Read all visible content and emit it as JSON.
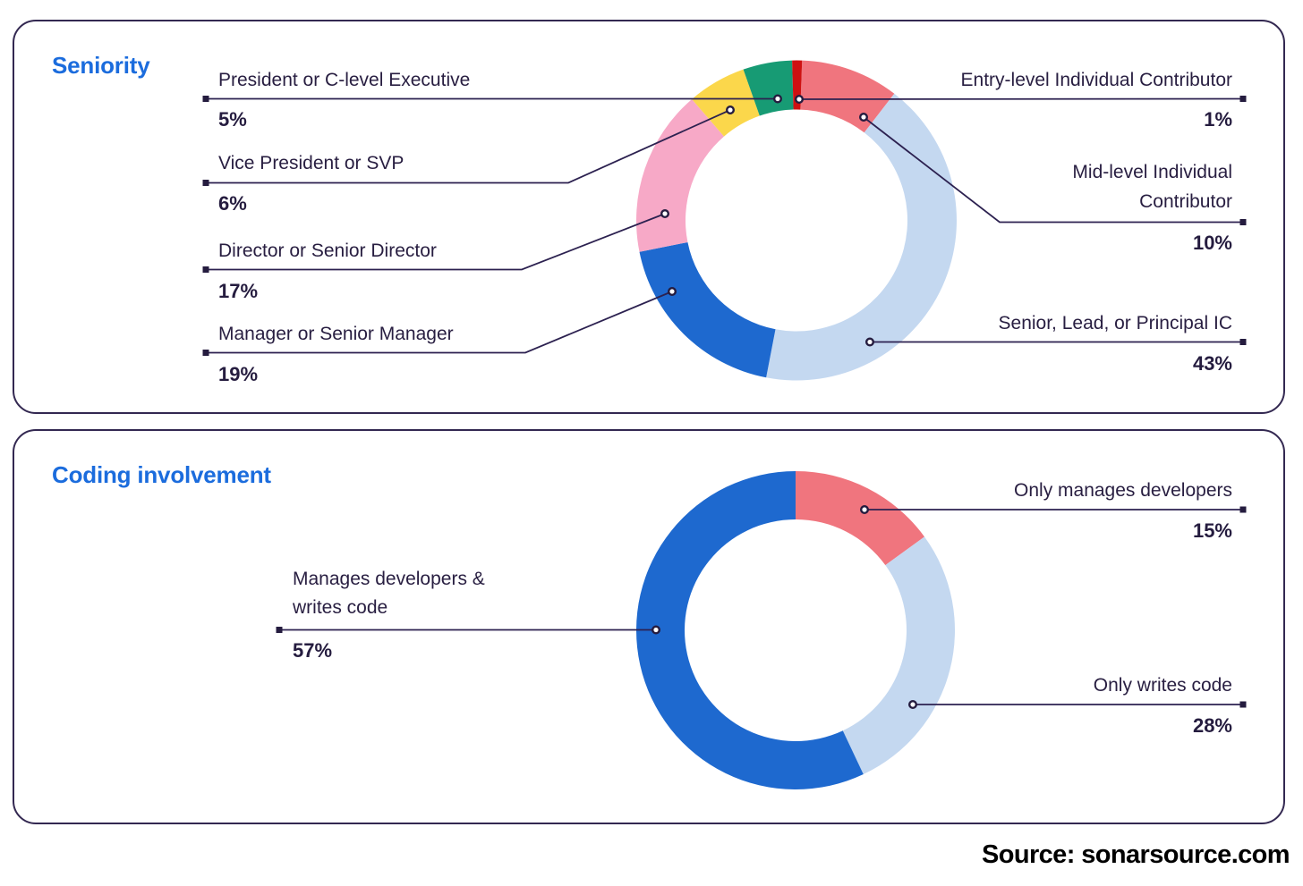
{
  "source": {
    "text": "Source: sonarsource.com"
  },
  "palette": {
    "title_blue": "#1B6CDD",
    "line_dark": "#2C2150",
    "text_dark": "#281E41",
    "panel_border": "#332851"
  },
  "chart_data": [
    {
      "type": "pie",
      "variant": "donut",
      "title": "Seniority",
      "order": "clockwise-from-top",
      "legend_position": "callouts",
      "segments": [
        {
          "label": "Mid-level Individual Contributor",
          "value": 10,
          "display": "10%",
          "color": "#F0757E"
        },
        {
          "label": "Senior, Lead, or Principal IC",
          "value": 43,
          "display": "43%",
          "color": "#C4D8F0"
        },
        {
          "label": "Manager or Senior Manager",
          "value": 19,
          "display": "19%",
          "color": "#1E69CF"
        },
        {
          "label": "Director or Senior Director",
          "value": 17,
          "display": "17%",
          "color": "#F7A9C7"
        },
        {
          "label": "Vice President or SVP",
          "value": 6,
          "display": "6%",
          "color": "#FBD74B"
        },
        {
          "label": "President or C-level Executive",
          "value": 5,
          "display": "5%",
          "color": "#179B74"
        },
        {
          "label": "Entry-level Individual Contributor",
          "value": 1,
          "display": "1%",
          "color": "#CE1111"
        }
      ]
    },
    {
      "type": "pie",
      "variant": "donut",
      "title": "Coding involvement",
      "order": "clockwise-from-top",
      "legend_position": "callouts",
      "segments": [
        {
          "label": "Only manages developers",
          "value": 15,
          "display": "15%",
          "color": "#F0757E"
        },
        {
          "label": "Only writes code",
          "value": 28,
          "display": "28%",
          "color": "#C4D8F0"
        },
        {
          "label": "Manages developers & writes code",
          "value": 57,
          "display": "57%",
          "color": "#1E69CF"
        }
      ]
    }
  ]
}
